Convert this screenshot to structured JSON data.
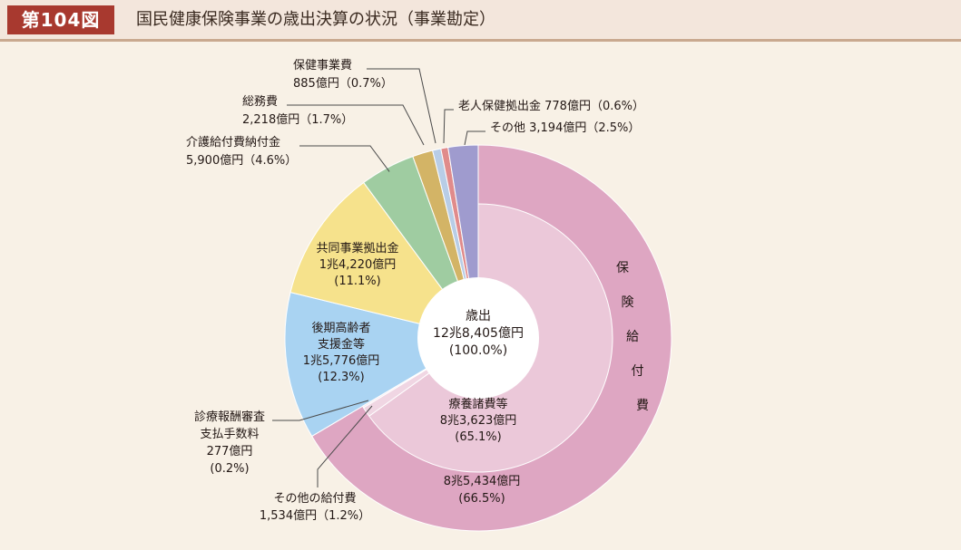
{
  "header": {
    "figure_number": "第104図",
    "title": "国民健康保険事業の歳出決算の状況（事業勘定）"
  },
  "chart_data": {
    "type": "pie",
    "title": "国民健康保険事業の歳出決算の状況（事業勘定）",
    "center_label": [
      "歳出",
      "12兆8,405億円",
      "(100.0%)"
    ],
    "outer_ring": [
      {
        "name": "保険給付費",
        "amount": "8兆5,434億円",
        "percent": 66.5,
        "color": "#dea6c2",
        "label_lines": [
          "8兆5,434億円",
          "(66.5%)"
        ],
        "vertical_label": "保険給付費"
      },
      {
        "name": "後期高齢者支援金等",
        "amount": "1兆5,776億円",
        "percent": 12.3,
        "color": "#a9d3f2",
        "label_lines": [
          "後期高齢者",
          "支援金等",
          "1兆5,776億円",
          "(12.3%)"
        ]
      },
      {
        "name": "共同事業拠出金",
        "amount": "1兆4,220億円",
        "percent": 11.1,
        "color": "#f6e28c",
        "label_lines": [
          "共同事業拠出金",
          "1兆4,220億円",
          "(11.1%)"
        ]
      },
      {
        "name": "介護給付費納付金",
        "amount": "5,900億円",
        "percent": 4.6,
        "color": "#9fcca1",
        "label_lines": [
          "介護給付費納付金",
          "5,900億円（4.6%）"
        ]
      },
      {
        "name": "総務費",
        "amount": "2,218億円",
        "percent": 1.7,
        "color": "#d3b466",
        "label_lines": [
          "総務費",
          "2,218億円（1.7%）"
        ]
      },
      {
        "name": "保健事業費",
        "amount": "885億円",
        "percent": 0.7,
        "color": "#b8cde6",
        "label_lines": [
          "保健事業費",
          "885億円（0.7%）"
        ]
      },
      {
        "name": "老人保健拠出金",
        "amount": "778億円",
        "percent": 0.6,
        "color": "#e08b8b",
        "label_lines": [
          "老人保健拠出金 778億円（0.6%）"
        ]
      },
      {
        "name": "その他",
        "amount": "3,194億円",
        "percent": 2.5,
        "color": "#9f9bce",
        "label_lines": [
          "その他 3,194億円（2.5%）"
        ]
      }
    ],
    "inner_ring": [
      {
        "name": "療養諸費等",
        "amount": "8兆3,623億円",
        "percent": 65.1,
        "color": "#ebc8d9",
        "label_lines": [
          "療養諸費等",
          "8兆3,623億円",
          "(65.1%)"
        ]
      },
      {
        "name": "その他の給付費",
        "amount": "1,534億円",
        "percent": 1.2,
        "color": "#f0d6e3",
        "label_lines": [
          "その他の給付費",
          "1,534億円（1.2%）"
        ]
      },
      {
        "name": "診療報酬審査支払手数料",
        "amount": "277億円",
        "percent": 0.2,
        "color": "#f7e6ee",
        "label_lines": [
          "診療報酬審査",
          "支払手数料",
          "277億円",
          "(0.2%)"
        ]
      }
    ]
  }
}
